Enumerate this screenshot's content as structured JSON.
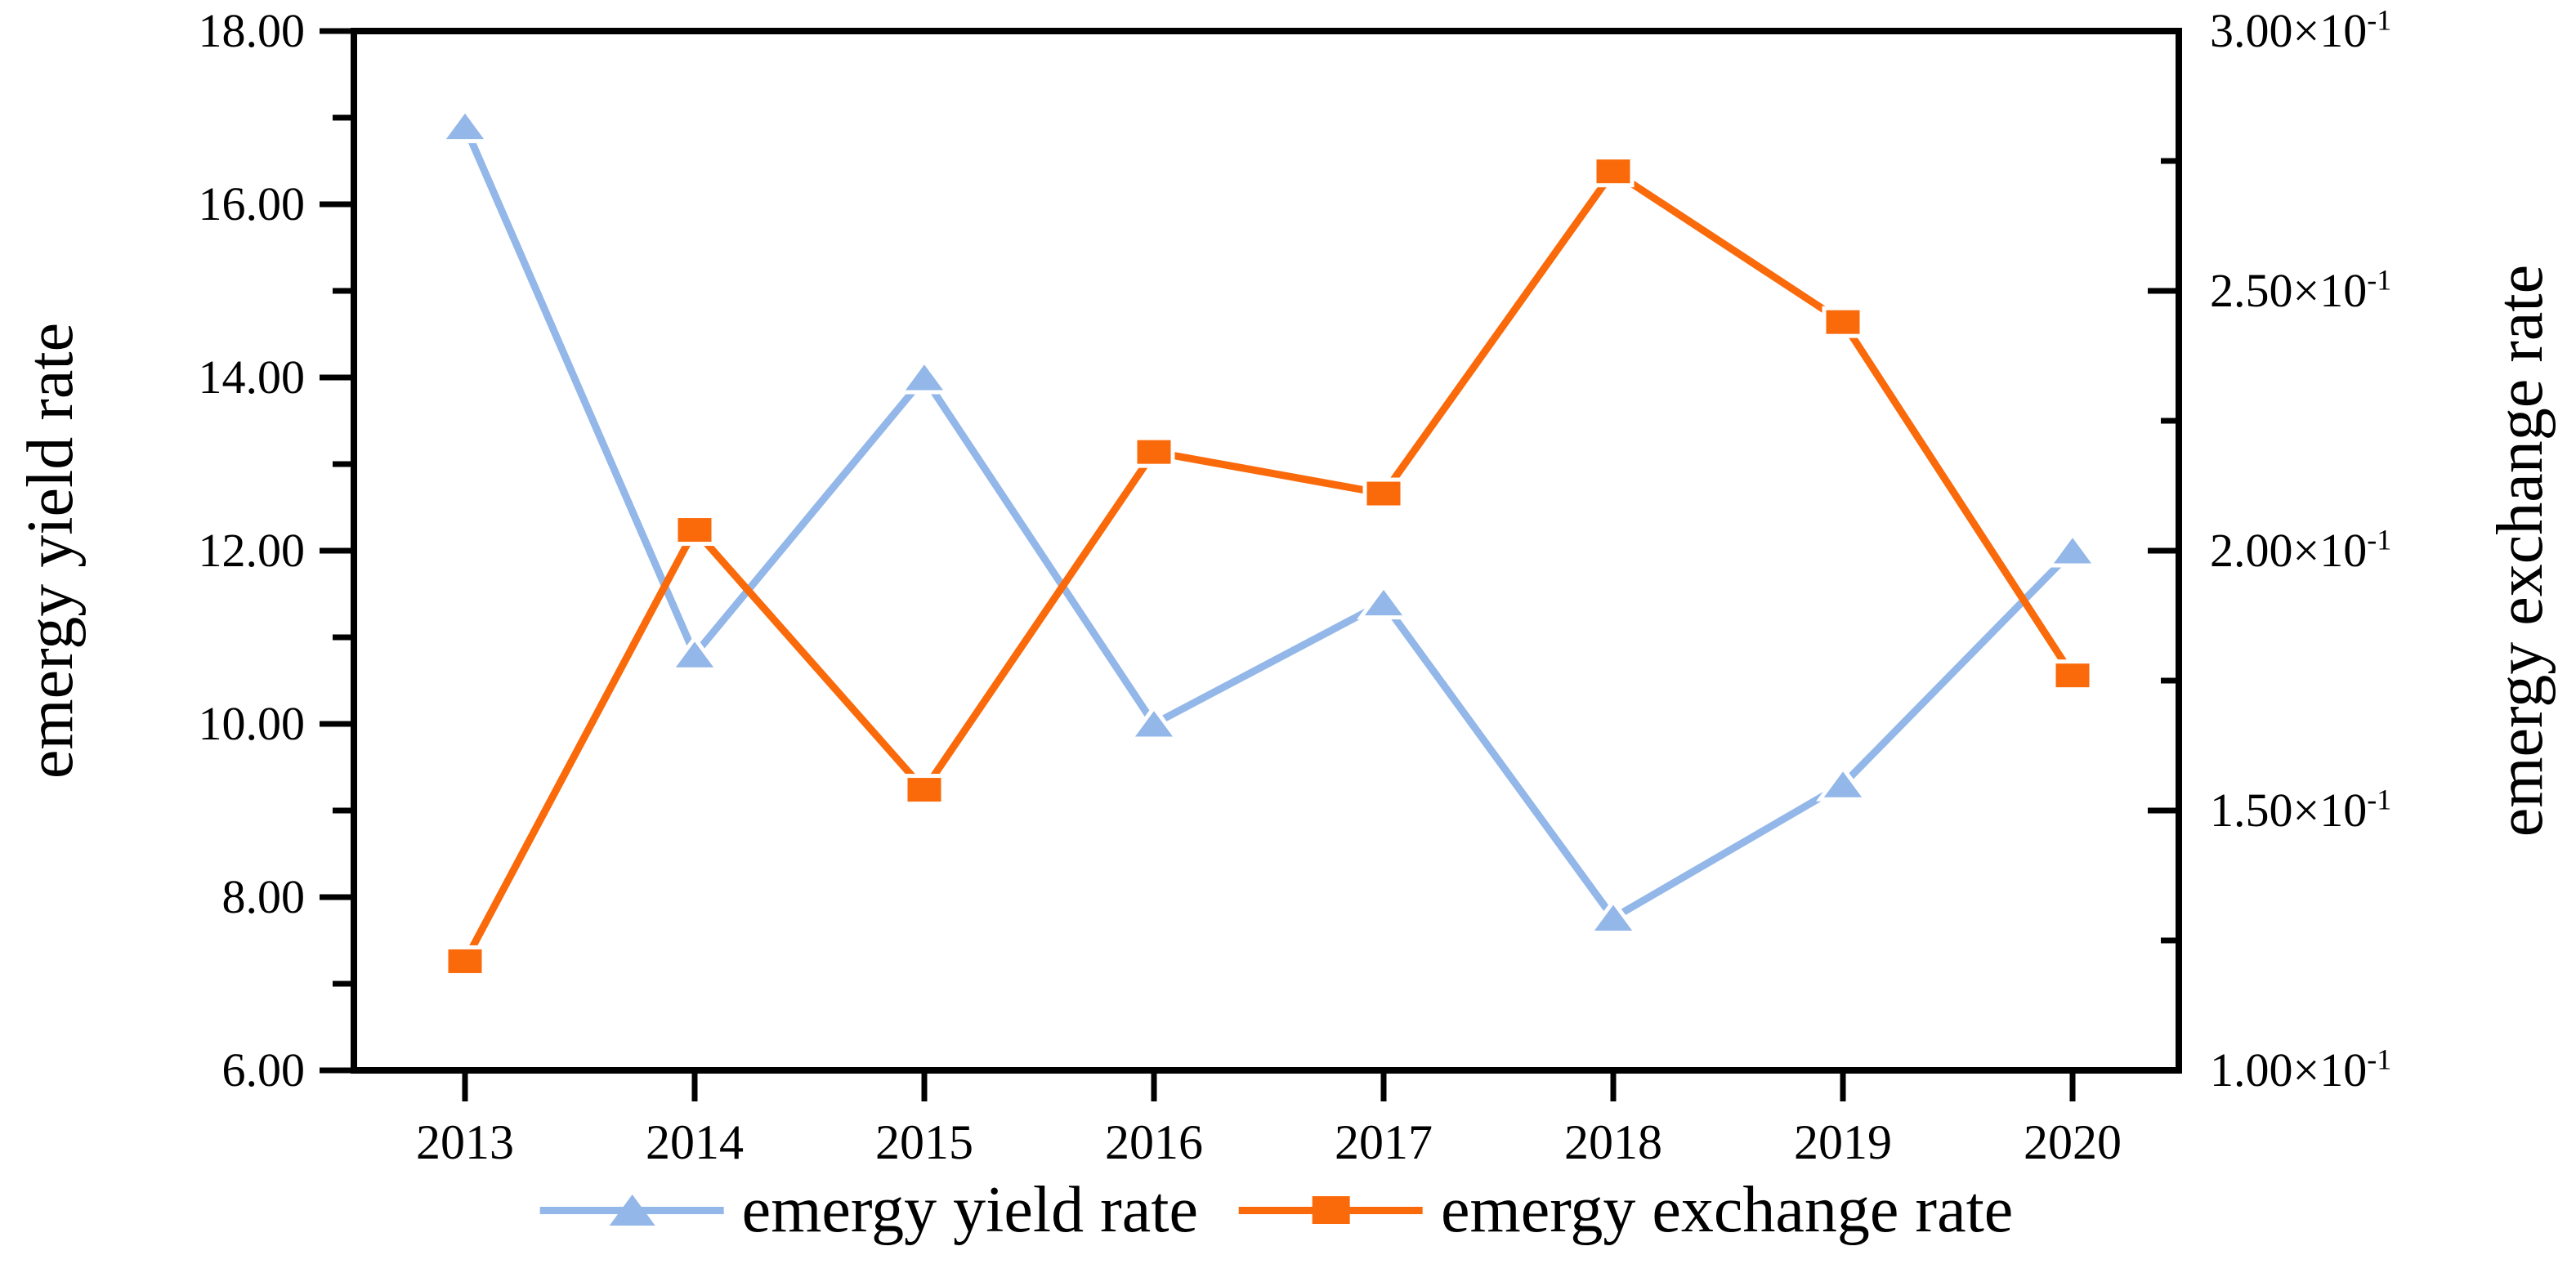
{
  "chart_data": {
    "type": "line",
    "title": "",
    "categories": [
      2013,
      2014,
      2015,
      2016,
      2017,
      2018,
      2019,
      2020
    ],
    "x_tick_labels": [
      "2013",
      "2014",
      "2015",
      "2016",
      "2017",
      "2018",
      "2019",
      "2020"
    ],
    "grid": false,
    "legend_position": "bottom",
    "left_axis": {
      "label": "emergy yield rate",
      "min": 6.0,
      "max": 18.0,
      "major_tick_values": [
        18,
        16,
        14,
        12,
        10,
        8,
        6
      ],
      "major_tick_labels": [
        "18.00",
        "16.00",
        "14.00",
        "12.00",
        "10.00",
        "8.00",
        "6.00"
      ],
      "minor_tick_values": [
        17,
        15,
        13,
        11,
        9,
        7
      ]
    },
    "right_axis": {
      "label": "emergy exchange rate",
      "min": 0.1,
      "max": 0.3,
      "major_tick_values": [
        0.3,
        0.25,
        0.2,
        0.15,
        0.1
      ],
      "major_tick_mantissas": [
        "3.00",
        "2.50",
        "2.00",
        "1.50",
        "1.00"
      ],
      "times_base": "×10",
      "exponent": "-1",
      "minor_tick_values": [
        0.275,
        0.225,
        0.175,
        0.125
      ]
    },
    "series": [
      {
        "name": "emergy yield rate",
        "axis": "left",
        "marker": "triangle",
        "color": "#92B7E8",
        "values": [
          16.9,
          10.8,
          14.0,
          10.0,
          11.4,
          7.76,
          9.3,
          12.0
        ]
      },
      {
        "name": "emergy exchange rate",
        "axis": "right",
        "marker": "square",
        "color": "#FA6A0B",
        "values": [
          0.121,
          0.204,
          0.154,
          0.219,
          0.211,
          0.273,
          0.244,
          0.176
        ]
      }
    ]
  },
  "colors": {
    "axis": "#000000",
    "yield_series": "#92B7E8",
    "exchange_series": "#FA6A0B",
    "background": "#ffffff"
  }
}
